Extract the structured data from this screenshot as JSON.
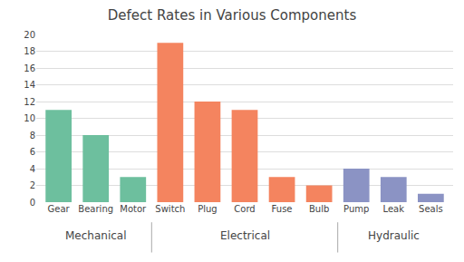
{
  "chart_data": {
    "type": "bar",
    "title": "Defect Rates in Various Components",
    "categories": [
      "Gear",
      "Bearing",
      "Motor",
      "Switch",
      "Plug",
      "Cord",
      "Fuse",
      "Bulb",
      "Pump",
      "Leak",
      "Seals"
    ],
    "groups": [
      "Mechanical",
      "Mechanical",
      "Mechanical",
      "Electrical",
      "Electrical",
      "Electrical",
      "Electrical",
      "Electrical",
      "Hydraulic",
      "Hydraulic",
      "Hydraulic"
    ],
    "values": [
      11,
      8,
      3,
      19,
      12,
      11,
      3,
      2,
      4,
      3,
      1
    ],
    "colors": [
      "#6dbf9e",
      "#6dbf9e",
      "#6dbf9e",
      "#f4845f",
      "#f4845f",
      "#f4845f",
      "#f4845f",
      "#f4845f",
      "#8b93c4",
      "#8b93c4",
      "#8b93c4"
    ],
    "ylim": [
      0,
      20
    ],
    "yticks": [
      0,
      2,
      4,
      6,
      8,
      10,
      12,
      14,
      16,
      18,
      20
    ],
    "grid": true
  }
}
